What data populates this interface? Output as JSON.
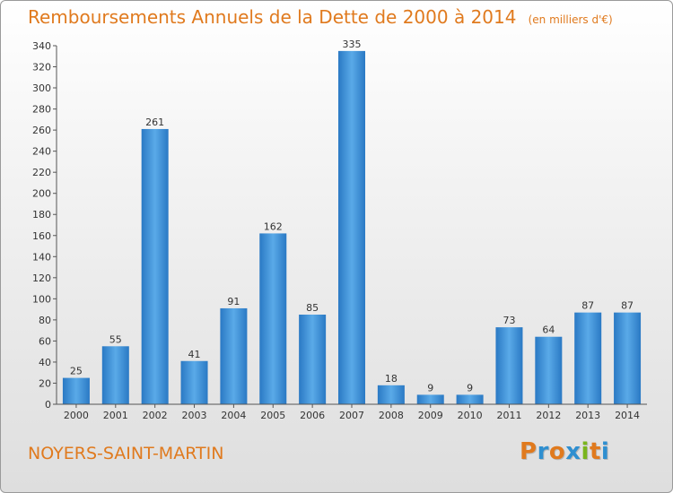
{
  "chart_data": {
    "type": "bar",
    "title": "Remboursements Annuels de la Dette de 2000 à 2014",
    "subtitle": "(en milliers d'€)",
    "xlabel": "",
    "ylabel": "",
    "categories": [
      "2000",
      "2001",
      "2002",
      "2003",
      "2004",
      "2005",
      "2006",
      "2007",
      "2008",
      "2009",
      "2010",
      "2011",
      "2012",
      "2013",
      "2014"
    ],
    "values": [
      25,
      55,
      261,
      41,
      91,
      162,
      85,
      335,
      18,
      9,
      9,
      73,
      64,
      87,
      87
    ],
    "ylim": [
      0,
      340
    ],
    "yticks": [
      0,
      20,
      40,
      60,
      80,
      100,
      120,
      140,
      160,
      180,
      200,
      220,
      240,
      260,
      280,
      300,
      320,
      340
    ],
    "grid": false,
    "bar_color": "#3d8fd6"
  },
  "footer": {
    "commune": "NOYERS-SAINT-MARTIN",
    "logo": "Proxiti",
    "logo_colors": [
      "#e07a1e",
      "#2f8fd0",
      "#e07a1e",
      "#2f8fd0",
      "#7ab51d",
      "#e07a1e",
      "#2f8fd0"
    ]
  },
  "colors": {
    "title": "#e07a1e",
    "axis": "#555555",
    "label": "#333333"
  }
}
